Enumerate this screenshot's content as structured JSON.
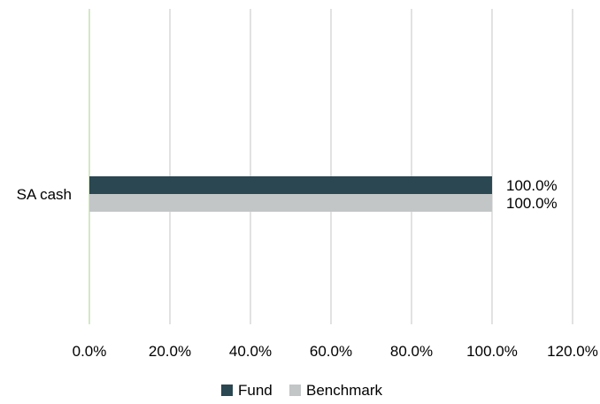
{
  "chart_data": {
    "type": "bar",
    "orientation": "horizontal",
    "categories": [
      "SA cash"
    ],
    "series": [
      {
        "name": "Fund",
        "values": [
          100.0
        ],
        "color": "#2a4752"
      },
      {
        "name": "Benchmark",
        "values": [
          100.0
        ],
        "color": "#c3c6c7"
      }
    ],
    "xlim": [
      0,
      120
    ],
    "x_ticks": [
      0,
      20,
      40,
      60,
      80,
      100,
      120
    ],
    "x_tick_labels": [
      "0.0%",
      "20.0%",
      "40.0%",
      "60.0%",
      "80.0%",
      "100.0%",
      "120.0%"
    ],
    "data_labels": [
      "100.0%",
      "100.0%"
    ],
    "grid": true,
    "gridline_color": "#d9d9d9",
    "zero_line_color": "#c6e0b4",
    "legend_position": "bottom",
    "title": "",
    "xlabel": "",
    "ylabel": ""
  }
}
